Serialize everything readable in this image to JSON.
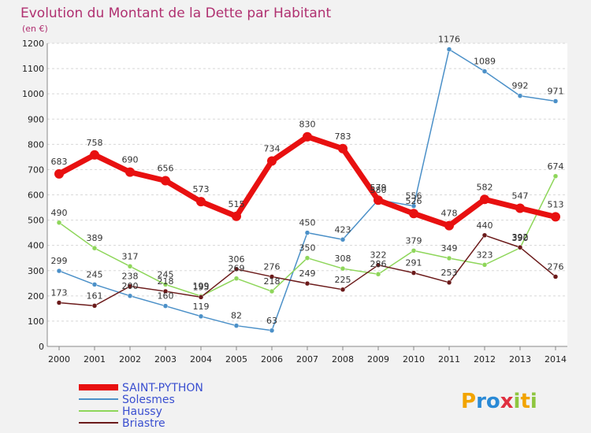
{
  "chart_data": {
    "type": "line",
    "title": "Evolution du Montant de la Dette par Habitant",
    "subtitle": "(en €)",
    "x": [
      "2000",
      "2001",
      "2002",
      "2003",
      "2004",
      "2005",
      "2006",
      "2007",
      "2008",
      "2009",
      "2010",
      "2011",
      "2012",
      "2013",
      "2014"
    ],
    "ylim": [
      0,
      1200
    ],
    "yticks": [
      0,
      100,
      200,
      300,
      400,
      500,
      600,
      700,
      800,
      900,
      1000,
      1100,
      1200
    ],
    "grid": true,
    "legend_position": "bottom-left",
    "series": [
      {
        "name": "SAINT-PYTHON",
        "color": "#e81010",
        "values": [
          683,
          758,
          690,
          656,
          573,
          515,
          734,
          830,
          783,
          579,
          526,
          478,
          582,
          547,
          513
        ]
      },
      {
        "name": "Solesmes",
        "color": "#4b90c8",
        "values": [
          299,
          245,
          200,
          160,
          119,
          82,
          63,
          450,
          423,
          580,
          556,
          1176,
          1089,
          992,
          971
        ]
      },
      {
        "name": "Haussy",
        "color": "#8ed65a",
        "values": [
          490,
          389,
          317,
          245,
          199,
          269,
          218,
          350,
          308,
          286,
          379,
          349,
          323,
          390,
          674
        ]
      },
      {
        "name": "Briastre",
        "color": "#6b1a1a",
        "values": [
          173,
          161,
          238,
          218,
          195,
          306,
          276,
          249,
          225,
          322,
          291,
          253,
          440,
          392,
          276
        ]
      }
    ]
  },
  "logo": {
    "text": "Proxiti"
  }
}
